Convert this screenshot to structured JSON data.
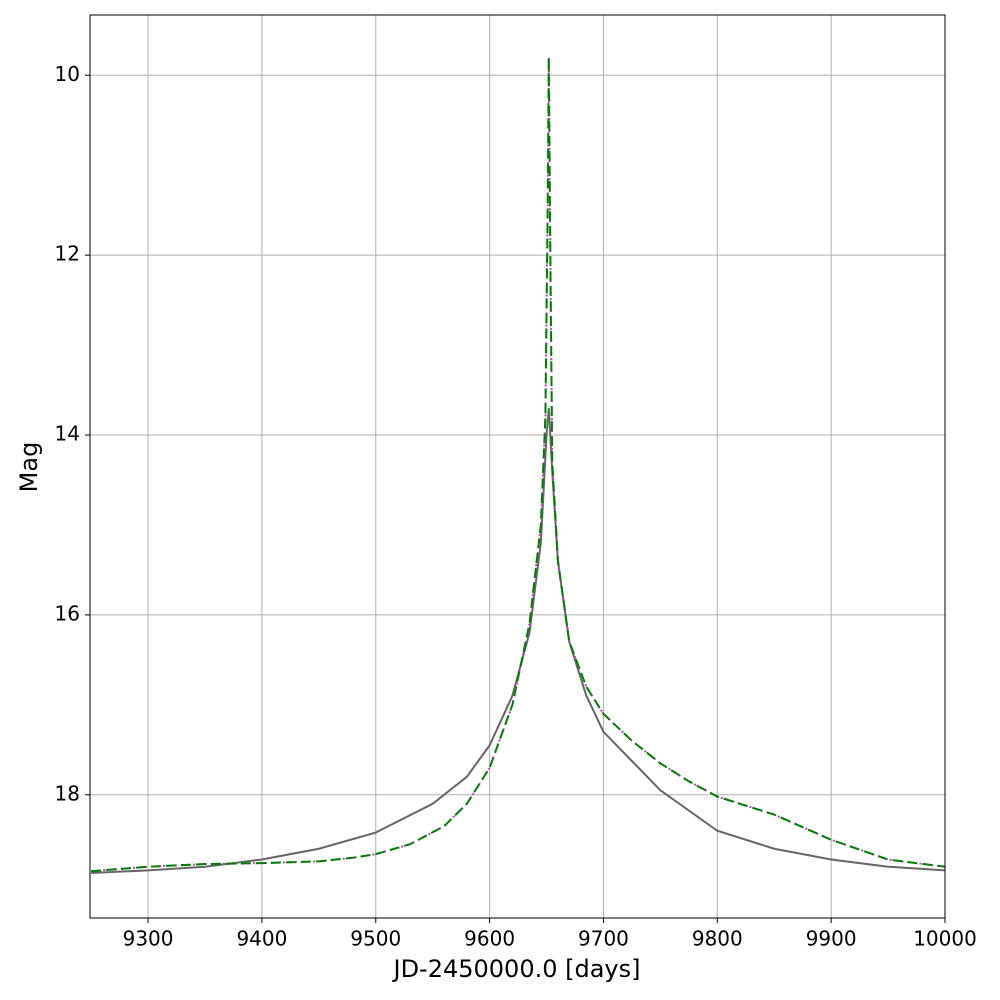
{
  "chart_data": {
    "type": "line",
    "xlabel": "JD-2450000.0 [days]",
    "ylabel": "Mag",
    "xlim": [
      9249,
      10000
    ],
    "ylim": [
      19.37,
      9.33
    ],
    "xticks": [
      9300,
      9400,
      9500,
      9600,
      9700,
      9800,
      9900,
      10000
    ],
    "yticks": [
      10,
      12,
      14,
      16,
      18
    ],
    "grid": true,
    "series": [
      {
        "color": "#666666",
        "style": "solid",
        "x": [
          9250,
          9300,
          9350,
          9400,
          9450,
          9500,
          9550,
          9580,
          9600,
          9620,
          9635,
          9645,
          9650,
          9652,
          9655,
          9660,
          9670,
          9685,
          9700,
          9750,
          9800,
          9850,
          9900,
          9950,
          10000
        ],
        "values": [
          18.87,
          18.84,
          18.8,
          18.72,
          18.6,
          18.42,
          18.1,
          17.8,
          17.45,
          16.9,
          16.2,
          15.2,
          14.0,
          13.7,
          14.4,
          15.4,
          16.3,
          16.9,
          17.3,
          17.95,
          18.4,
          18.6,
          18.72,
          18.8,
          18.84
        ]
      },
      {
        "color": "#bf3fbf",
        "style": "dotted",
        "x": [
          9250,
          9300,
          9350,
          9400,
          9450,
          9480,
          9500,
          9530,
          9560,
          9580,
          9600,
          9620,
          9635,
          9645,
          9649,
          9651,
          9652,
          9653,
          9655,
          9660,
          9670,
          9685,
          9700,
          9725,
          9750,
          9775,
          9800,
          9850,
          9900,
          9950,
          10000
        ],
        "values": [
          18.85,
          18.8,
          18.77,
          18.76,
          18.74,
          18.7,
          18.66,
          18.55,
          18.35,
          18.1,
          17.7,
          17.0,
          16.1,
          15.0,
          13.8,
          11.5,
          9.8,
          11.5,
          14.3,
          15.4,
          16.3,
          16.8,
          17.1,
          17.4,
          17.65,
          17.85,
          18.02,
          18.22,
          18.5,
          18.72,
          18.8
        ]
      },
      {
        "color": "#008000",
        "style": "dashed",
        "x": [
          9250,
          9300,
          9350,
          9400,
          9450,
          9480,
          9500,
          9530,
          9560,
          9580,
          9600,
          9620,
          9635,
          9645,
          9649,
          9651,
          9652,
          9653,
          9655,
          9660,
          9670,
          9685,
          9700,
          9725,
          9750,
          9775,
          9800,
          9850,
          9900,
          9950,
          10000
        ],
        "values": [
          18.85,
          18.8,
          18.77,
          18.76,
          18.74,
          18.7,
          18.66,
          18.55,
          18.35,
          18.1,
          17.7,
          17.0,
          16.1,
          15.0,
          13.8,
          11.5,
          9.8,
          11.5,
          14.3,
          15.4,
          16.3,
          16.8,
          17.1,
          17.4,
          17.65,
          17.85,
          18.02,
          18.22,
          18.5,
          18.72,
          18.8
        ]
      }
    ]
  }
}
